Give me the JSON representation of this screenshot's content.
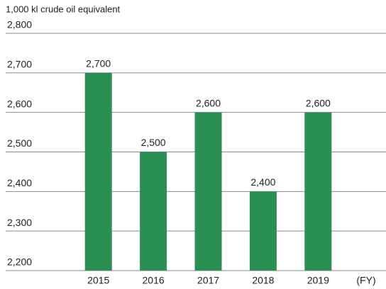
{
  "chart_data": {
    "type": "bar",
    "y_axis_label": "1,000 kl crude oil equivalent",
    "x_axis_label": "(FY)",
    "categories": [
      "2015",
      "2016",
      "2017",
      "2018",
      "2019"
    ],
    "values": [
      2700,
      2500,
      2600,
      2400,
      2600
    ],
    "value_labels": [
      "2,700",
      "2,500",
      "2,600",
      "2,400",
      "2,600"
    ],
    "color": "#2a8f52",
    "ylim": [
      2200,
      2800
    ],
    "yticks": [
      {
        "value": 2200,
        "label": "2,200"
      },
      {
        "value": 2300,
        "label": "2,300"
      },
      {
        "value": 2400,
        "label": "2,400"
      },
      {
        "value": 2500,
        "label": "2,500"
      },
      {
        "value": 2600,
        "label": "2,600"
      },
      {
        "value": 2700,
        "label": "2,700"
      },
      {
        "value": 2800,
        "label": "2,800"
      }
    ],
    "grid": true
  }
}
